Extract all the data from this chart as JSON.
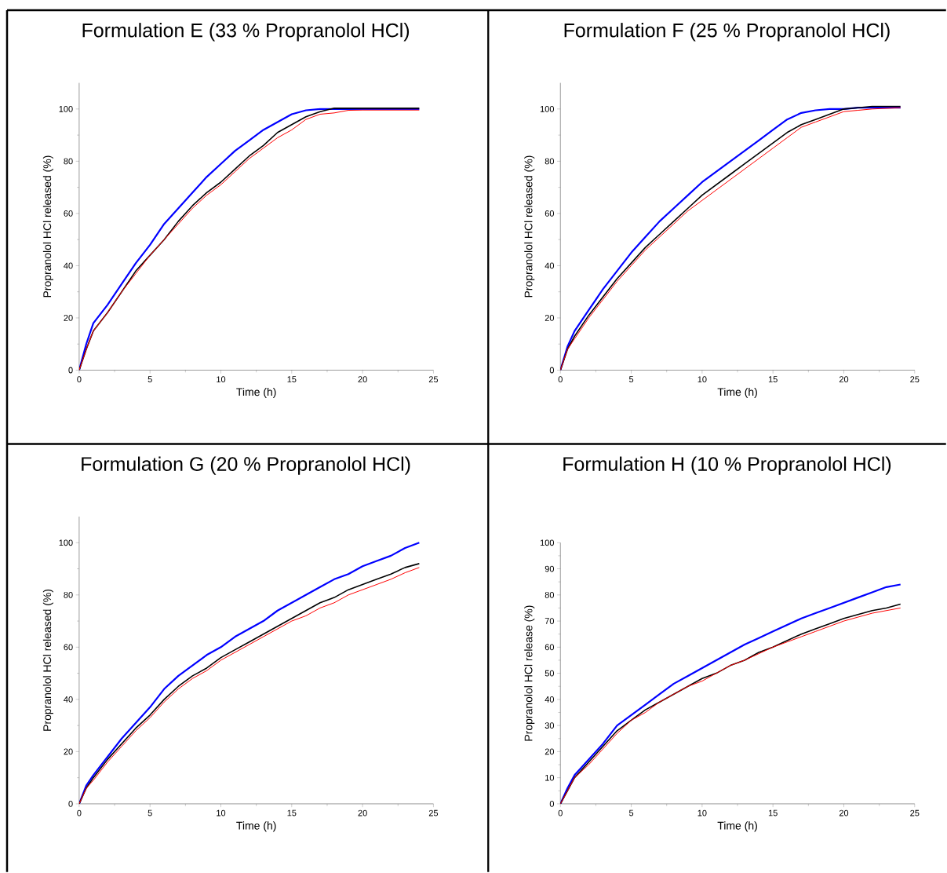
{
  "chart_data": [
    {
      "type": "line",
      "title": "Formulation E (33 % Propranolol HCl)",
      "xlabel": "Time (h)",
      "ylabel": "Propranolol HCl released (%)",
      "xlim": [
        0,
        25
      ],
      "ylim": [
        0,
        110
      ],
      "xticks": [
        0,
        5,
        10,
        15,
        20,
        25
      ],
      "yticks": [
        0,
        20,
        40,
        60,
        80,
        100
      ],
      "x": [
        0,
        0.5,
        1,
        2,
        3,
        4,
        5,
        6,
        7,
        8,
        9,
        10,
        11,
        12,
        13,
        14,
        15,
        16,
        17,
        18,
        19,
        20,
        22,
        24
      ],
      "series": [
        {
          "color": "#0000ff",
          "values": [
            0,
            10,
            18,
            25,
            33,
            41,
            48,
            56,
            62,
            68,
            74,
            79,
            84,
            88,
            92,
            95,
            98,
            99.5,
            100,
            100,
            100,
            100,
            100,
            100
          ]
        },
        {
          "color": "#000000",
          "values": [
            0,
            8,
            15,
            22,
            30,
            38,
            44,
            50,
            57,
            63,
            68,
            72,
            77,
            82,
            86,
            91,
            94,
            97,
            99,
            100.3,
            100.3,
            100.3,
            100.3,
            100.3
          ]
        },
        {
          "color": "#ff0000",
          "values": [
            0,
            8,
            15,
            22,
            30,
            37,
            44,
            50,
            56,
            62,
            67,
            71,
            76,
            81,
            85,
            89,
            92,
            96,
            98,
            98.5,
            99.5,
            99.6,
            99.6,
            99.6
          ]
        }
      ]
    },
    {
      "type": "line",
      "title": "Formulation F (25 % Propranolol HCl)",
      "xlabel": "Time (h)",
      "ylabel": "Propranolol HCl released (%)",
      "xlim": [
        0,
        25
      ],
      "ylim": [
        0,
        110
      ],
      "xticks": [
        0,
        5,
        10,
        15,
        20,
        25
      ],
      "yticks": [
        0,
        20,
        40,
        60,
        80,
        100
      ],
      "x": [
        0,
        0.5,
        1,
        2,
        3,
        4,
        5,
        6,
        7,
        8,
        9,
        10,
        11,
        12,
        13,
        14,
        15,
        16,
        17,
        18,
        19,
        20,
        21,
        22,
        24
      ],
      "series": [
        {
          "color": "#0000ff",
          "values": [
            0,
            9,
            15,
            23,
            31,
            38,
            45,
            51,
            57,
            62,
            67,
            72,
            76,
            80,
            84,
            88,
            92,
            96,
            98.5,
            99.5,
            100,
            100,
            100.5,
            100.5,
            100.5
          ]
        },
        {
          "color": "#000000",
          "values": [
            0,
            8,
            13,
            21,
            28,
            35,
            41,
            47,
            52,
            57,
            62,
            67,
            71,
            75,
            79,
            83,
            87,
            91,
            94,
            96,
            98,
            100,
            100.5,
            101,
            101
          ]
        },
        {
          "color": "#ff0000",
          "values": [
            0,
            8,
            12,
            20,
            27,
            34,
            40,
            46,
            51,
            56,
            61,
            65,
            69,
            73,
            77,
            81,
            85,
            89,
            93,
            95,
            97,
            99,
            99.5,
            100,
            100.5
          ]
        }
      ]
    },
    {
      "type": "line",
      "title": "Formulation G (20 % Propranolol HCl)",
      "xlabel": "Time (h)",
      "ylabel": "Propranolol HCl released (%)",
      "xlim": [
        0,
        25
      ],
      "ylim": [
        0,
        110
      ],
      "xticks": [
        0,
        5,
        10,
        15,
        20,
        25
      ],
      "yticks": [
        0,
        20,
        40,
        60,
        80,
        100
      ],
      "x": [
        0,
        0.5,
        1,
        2,
        3,
        4,
        5,
        6,
        7,
        8,
        9,
        10,
        11,
        12,
        13,
        14,
        15,
        16,
        17,
        18,
        19,
        20,
        21,
        22,
        23,
        24
      ],
      "series": [
        {
          "color": "#0000ff",
          "values": [
            0,
            7,
            11,
            18,
            25,
            31,
            37,
            44,
            49,
            53,
            57,
            60,
            64,
            67,
            70,
            74,
            77,
            80,
            83,
            86,
            88,
            91,
            93,
            95,
            98,
            100
          ]
        },
        {
          "color": "#000000",
          "values": [
            0,
            6,
            10,
            17,
            23,
            29,
            34,
            40,
            45,
            49,
            52,
            56,
            59,
            62,
            65,
            68,
            71,
            74,
            77,
            79,
            82,
            84,
            86,
            88,
            90.5,
            92
          ]
        },
        {
          "color": "#ff0000",
          "values": [
            0,
            6,
            9,
            16,
            22,
            28,
            33,
            39,
            44,
            48,
            51,
            55,
            58,
            61,
            64,
            67,
            70,
            72,
            75,
            77,
            80,
            82,
            84,
            86,
            88.5,
            90.5
          ]
        }
      ]
    },
    {
      "type": "line",
      "title": "Formulation H (10 % Propranolol HCl)",
      "xlabel": "Time (h)",
      "ylabel": "Propranolol HCl release (%)",
      "xlim": [
        0,
        25
      ],
      "ylim": [
        0,
        100
      ],
      "xticks": [
        0,
        5,
        10,
        15,
        20,
        25
      ],
      "yticks": [
        0,
        10,
        20,
        30,
        40,
        50,
        60,
        70,
        80,
        90,
        100
      ],
      "x": [
        0,
        0.5,
        1,
        2,
        3,
        4,
        5,
        6,
        7,
        8,
        9,
        10,
        11,
        12,
        13,
        14,
        15,
        16,
        17,
        18,
        19,
        20,
        21,
        22,
        23,
        24
      ],
      "series": [
        {
          "color": "#0000ff",
          "values": [
            0,
            6,
            11,
            17,
            23,
            30,
            34,
            38,
            42,
            46,
            49,
            52,
            55,
            58,
            61,
            63.5,
            66,
            68.5,
            71,
            73,
            75,
            77,
            79,
            81,
            83,
            84
          ]
        },
        {
          "color": "#000000",
          "values": [
            0,
            5,
            10,
            16,
            22,
            28,
            32,
            36,
            39,
            42,
            45,
            48,
            50,
            53,
            55,
            58,
            60,
            62.5,
            65,
            67,
            69,
            71,
            72.5,
            74,
            75,
            76.5
          ]
        },
        {
          "color": "#ff0000",
          "values": [
            0,
            5,
            10,
            15,
            21,
            27,
            32,
            35,
            39,
            42,
            45,
            47,
            50,
            53,
            55,
            57.5,
            60,
            62,
            64,
            66,
            68,
            70,
            71.5,
            73,
            74,
            75
          ]
        }
      ]
    }
  ]
}
